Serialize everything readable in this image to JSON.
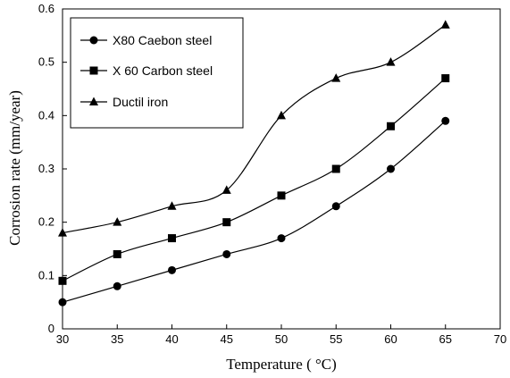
{
  "chart_data": {
    "type": "line",
    "xlabel": "Temperature ( °C)",
    "ylabel": "Corrosion rate (mm/year)",
    "xlim": [
      30,
      70
    ],
    "ylim": [
      0,
      0.6
    ],
    "x_ticks": [
      "30",
      "35",
      "40",
      "45",
      "50",
      "55",
      "60",
      "65",
      "70"
    ],
    "y_ticks": [
      "0",
      "0.1",
      "0.2",
      "0.3",
      "0.4",
      "0.5",
      "0.6"
    ],
    "grid": false,
    "legend_position": "top-left",
    "x": [
      30,
      35,
      40,
      45,
      50,
      55,
      60,
      65
    ],
    "series": [
      {
        "name": "X80 Caebon steel",
        "marker": "circle",
        "values": [
          0.05,
          0.08,
          0.11,
          0.14,
          0.17,
          0.23,
          0.3,
          0.39
        ]
      },
      {
        "name": "X 60 Carbon steel",
        "marker": "square",
        "values": [
          0.09,
          0.14,
          0.17,
          0.2,
          0.25,
          0.3,
          0.38,
          0.47
        ]
      },
      {
        "name": "Ductil iron",
        "marker": "triangle",
        "values": [
          0.18,
          0.2,
          0.23,
          0.26,
          0.4,
          0.47,
          0.5,
          0.57
        ]
      }
    ],
    "color": "#000000"
  }
}
